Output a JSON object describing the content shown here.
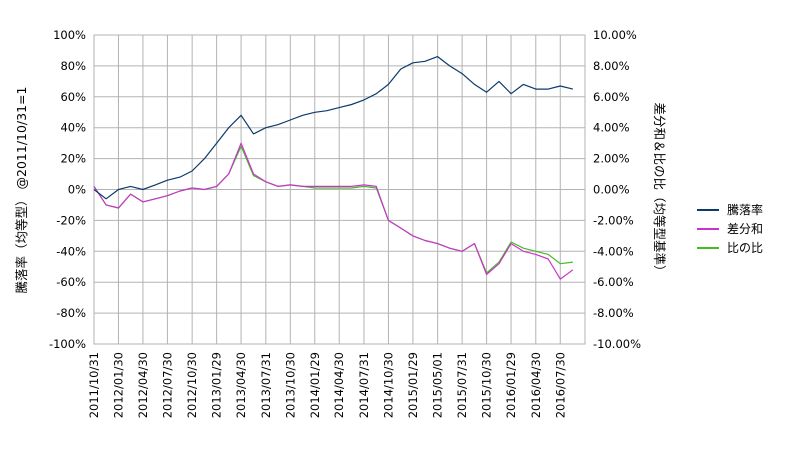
{
  "chart_data": {
    "type": "line",
    "title": "",
    "ylabel_left": "騰落率（均等型） @2011/10/31=1",
    "ylabel_right": "差分和＆比の比（均等型基準）",
    "yleft_ticks": [
      "100%",
      "80%",
      "60%",
      "40%",
      "20%",
      "0%",
      "-20%",
      "-40%",
      "-60%",
      "-80%",
      "-100%"
    ],
    "yright_ticks": [
      "10.00%",
      "8.00%",
      "6.00%",
      "4.00%",
      "2.00%",
      "0.00%",
      "-2.00%",
      "-4.00%",
      "-6.00%",
      "-8.00%",
      "-10.00%"
    ],
    "yleft_range": [
      -100,
      100
    ],
    "yright_range": [
      -10,
      10
    ],
    "x_tick_labels": [
      "2011/10/31",
      "2012/01/30",
      "2012/04/30",
      "2012/07/30",
      "2012/10/30",
      "2013/01/29",
      "2013/04/30",
      "2013/07/31",
      "2013/10/30",
      "2014/01/29",
      "2014/04/30",
      "2014/07/31",
      "2014/10/30",
      "2015/01/29",
      "2015/05/01",
      "2015/07/31",
      "2015/10/30",
      "2016/01/29",
      "2016/04/30",
      "2016/07/30"
    ],
    "x": [
      "2011/10/31",
      "2011/12/15",
      "2012/01/30",
      "2012/03/15",
      "2012/04/30",
      "2012/06/15",
      "2012/07/30",
      "2012/09/15",
      "2012/10/30",
      "2012/12/15",
      "2013/01/29",
      "2013/03/15",
      "2013/04/30",
      "2013/06/15",
      "2013/07/31",
      "2013/09/15",
      "2013/10/30",
      "2013/12/15",
      "2014/01/29",
      "2014/03/15",
      "2014/04/30",
      "2014/06/15",
      "2014/07/31",
      "2014/09/15",
      "2014/10/30",
      "2014/12/15",
      "2015/01/29",
      "2015/03/15",
      "2015/05/01",
      "2015/06/15",
      "2015/07/31",
      "2015/09/15",
      "2015/10/30",
      "2015/12/15",
      "2016/01/29",
      "2016/03/15",
      "2016/04/30",
      "2016/06/15",
      "2016/07/30",
      "2016/09/15"
    ],
    "grid": true,
    "legend_position": "right",
    "series": [
      {
        "name": "騰落率",
        "axis": "left",
        "color": "#0b3a6b",
        "values": [
          0,
          -6,
          0,
          2,
          0,
          3,
          6,
          8,
          12,
          20,
          30,
          40,
          48,
          36,
          40,
          42,
          45,
          48,
          50,
          51,
          53,
          55,
          58,
          62,
          68,
          78,
          82,
          83,
          86,
          80,
          75,
          68,
          63,
          70,
          62,
          68,
          65,
          65,
          67,
          65
        ]
      },
      {
        "name": "差分和",
        "axis": "right",
        "color": "#cc33cc",
        "values": [
          0.2,
          -1.0,
          -1.2,
          -0.3,
          -0.8,
          -0.6,
          -0.4,
          -0.1,
          0.1,
          0.0,
          0.2,
          1.0,
          3.0,
          1.0,
          0.5,
          0.2,
          0.3,
          0.2,
          0.2,
          0.2,
          0.2,
          0.2,
          0.3,
          0.2,
          -2.0,
          -2.5,
          -3.0,
          -3.3,
          -3.5,
          -3.8,
          -4.0,
          -3.5,
          -5.5,
          -4.8,
          -3.5,
          -4.0,
          -4.2,
          -4.5,
          -5.8,
          -5.2
        ]
      },
      {
        "name": "比の比",
        "axis": "right",
        "color": "#44bb22",
        "values": [
          0.2,
          -1.0,
          -1.2,
          -0.3,
          -0.8,
          -0.6,
          -0.4,
          -0.1,
          0.1,
          0.0,
          0.2,
          1.0,
          2.8,
          0.9,
          0.5,
          0.2,
          0.3,
          0.2,
          0.1,
          0.1,
          0.1,
          0.1,
          0.2,
          0.1,
          -2.0,
          -2.5,
          -3.0,
          -3.3,
          -3.5,
          -3.8,
          -4.0,
          -3.5,
          -5.4,
          -4.7,
          -3.4,
          -3.8,
          -4.0,
          -4.2,
          -4.8,
          -4.7
        ]
      }
    ]
  }
}
